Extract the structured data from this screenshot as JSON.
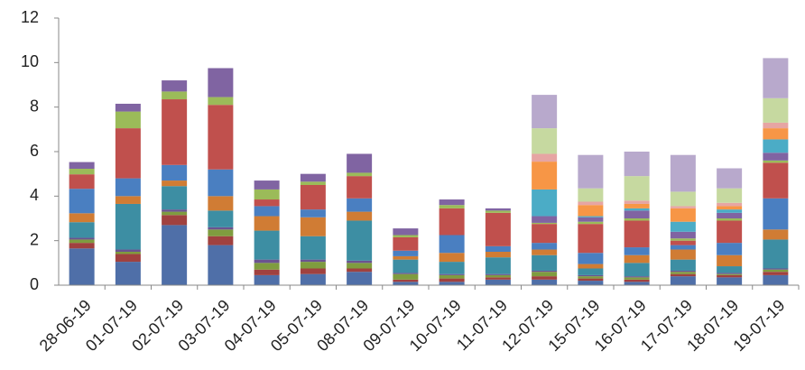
{
  "chart_data": {
    "type": "stacked_bar",
    "categories": [
      "28-06-19",
      "01-07-19",
      "02-07-19",
      "03-07-19",
      "04-07-19",
      "05-07-19",
      "08-07-19",
      "09-07-19",
      "10-07-19",
      "11-07-19",
      "12-07-19",
      "15-07-19",
      "16-07-19",
      "17-07-19",
      "18-07-19",
      "19-07-19"
    ],
    "ylim": [
      0,
      12
    ],
    "yticks": [
      0,
      2,
      4,
      6,
      8,
      10,
      12
    ],
    "grid": false,
    "series": [
      {
        "color": "#4f6fa8",
        "values": [
          1.65,
          1.05,
          2.7,
          1.8,
          0.45,
          0.5,
          0.6,
          0.15,
          0.15,
          0.25,
          0.25,
          0.2,
          0.15,
          0.4,
          0.35,
          0.45
        ]
      },
      {
        "color": "#a0413f",
        "values": [
          0.25,
          0.35,
          0.45,
          0.4,
          0.25,
          0.25,
          0.15,
          0.1,
          0.15,
          0.1,
          0.15,
          0.1,
          0.1,
          0.1,
          0.1,
          0.15
        ]
      },
      {
        "color": "#7f9c3f",
        "values": [
          0.15,
          0.1,
          0.15,
          0.3,
          0.3,
          0.3,
          0.25,
          0.25,
          0.15,
          0.1,
          0.2,
          0.1,
          0.1,
          0.1,
          0.05,
          0.1
        ]
      },
      {
        "color": "#6b5390",
        "values": [
          0.08,
          0.1,
          0.1,
          0.1,
          0.15,
          0.1,
          0.1,
          0.05,
          0.05,
          0.05,
          0.05,
          0.05,
          0.05,
          0.05,
          0.05,
          0.05
        ]
      },
      {
        "color": "#3d8ea3",
        "values": [
          0.7,
          2.05,
          1.05,
          0.75,
          1.3,
          1.05,
          1.8,
          0.6,
          0.55,
          0.75,
          0.7,
          0.3,
          0.6,
          0.5,
          0.3,
          1.3
        ]
      },
      {
        "color": "#d07c34",
        "values": [
          0.4,
          0.35,
          0.25,
          0.65,
          0.65,
          0.85,
          0.4,
          0.15,
          0.4,
          0.25,
          0.25,
          0.2,
          0.35,
          0.45,
          0.5,
          0.45
        ]
      },
      {
        "color": "#4a7fc1",
        "values": [
          1.1,
          0.8,
          0.7,
          1.2,
          0.45,
          0.35,
          0.6,
          0.25,
          0.8,
          0.25,
          0.3,
          0.5,
          0.35,
          0.2,
          0.55,
          1.4
        ]
      },
      {
        "color": "#c0504d",
        "values": [
          0.65,
          2.25,
          2.95,
          2.9,
          0.3,
          1.1,
          1.0,
          0.6,
          1.2,
          1.5,
          0.85,
          1.3,
          1.2,
          0.2,
          1.0,
          1.6
        ]
      },
      {
        "color": "#9bbb59",
        "values": [
          0.25,
          0.75,
          0.35,
          0.35,
          0.45,
          0.15,
          0.15,
          0.1,
          0.15,
          0.1,
          0.05,
          0.1,
          0.1,
          0.1,
          0.1,
          0.1
        ]
      },
      {
        "color": "#8064a2",
        "values": [
          0.3,
          0.35,
          0.5,
          1.3,
          0.4,
          0.35,
          0.85,
          0.3,
          0.25,
          0.1,
          0.3,
          0.2,
          0.35,
          0.3,
          0.25,
          0.35
        ]
      },
      {
        "color": "#4bacc6",
        "values": [
          0,
          0,
          0,
          0,
          0,
          0,
          0,
          0,
          0,
          0,
          1.2,
          0.05,
          0.1,
          0.45,
          0.15,
          0.6
        ]
      },
      {
        "color": "#f79646",
        "values": [
          0,
          0,
          0,
          0,
          0,
          0,
          0,
          0,
          0,
          0,
          1.25,
          0.5,
          0.2,
          0.6,
          0.15,
          0.5
        ]
      },
      {
        "color": "#e6a5a3",
        "values": [
          0,
          0,
          0,
          0,
          0,
          0,
          0,
          0,
          0,
          0,
          0.35,
          0.15,
          0.15,
          0.1,
          0.15,
          0.25
        ]
      },
      {
        "color": "#c6d9a0",
        "values": [
          0,
          0,
          0,
          0,
          0,
          0,
          0,
          0,
          0,
          0,
          1.15,
          0.6,
          1.1,
          0.65,
          0.65,
          1.1
        ]
      },
      {
        "color": "#b8a9cc",
        "values": [
          0,
          0,
          0,
          0,
          0,
          0,
          0,
          0,
          0,
          0,
          1.5,
          1.5,
          1.1,
          1.65,
          0.9,
          1.8
        ]
      }
    ]
  }
}
